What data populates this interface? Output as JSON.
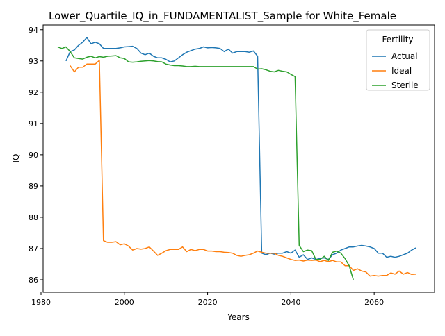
{
  "chart_data": {
    "type": "line",
    "title": "Lower_Quartile_IQ_in_FUNDAMENTALIST_Sample for White_Female",
    "xlabel": "Years",
    "ylabel": "IQ",
    "xlim": [
      1980.5,
      2074.5
    ],
    "ylim": [
      85.6,
      94.15
    ],
    "xticks": [
      1980,
      2000,
      2020,
      2040,
      2060
    ],
    "yticks": [
      86,
      87,
      88,
      89,
      90,
      91,
      92,
      93,
      94
    ],
    "grid": false,
    "legend": {
      "title": "Fertility",
      "placement": "top-right"
    },
    "series": [
      {
        "name": "Actual",
        "color": "#1f77b4",
        "x": [
          1986,
          1987,
          1988,
          1989,
          1990,
          1991,
          1992,
          1993,
          1994,
          1995,
          1996,
          1997,
          1998,
          1999,
          2000,
          2001,
          2002,
          2003,
          2004,
          2005,
          2006,
          2007,
          2008,
          2009,
          2010,
          2011,
          2012,
          2013,
          2014,
          2015,
          2016,
          2017,
          2018,
          2019,
          2020,
          2021,
          2022,
          2023,
          2024,
          2025,
          2026,
          2027,
          2028,
          2029,
          2030,
          2031,
          2032,
          2033,
          2034,
          2035,
          2036,
          2037,
          2038,
          2039,
          2040,
          2041,
          2042,
          2043,
          2044,
          2045,
          2046,
          2047,
          2048,
          2049,
          2050,
          2051,
          2052,
          2053,
          2054,
          2055,
          2056,
          2057,
          2058,
          2059,
          2060,
          2061,
          2062,
          2063,
          2064,
          2065,
          2066,
          2067,
          2068,
          2069,
          2070
        ],
        "y": [
          93.0,
          93.3,
          93.35,
          93.5,
          93.6,
          93.75,
          93.55,
          93.6,
          93.55,
          93.4,
          93.4,
          93.4,
          93.4,
          93.42,
          93.45,
          93.46,
          93.47,
          93.4,
          93.25,
          93.2,
          93.25,
          93.15,
          93.1,
          93.1,
          93.05,
          92.97,
          93.0,
          93.1,
          93.2,
          93.28,
          93.33,
          93.38,
          93.4,
          93.45,
          93.42,
          93.43,
          93.42,
          93.4,
          93.3,
          93.38,
          93.25,
          93.3,
          93.3,
          93.3,
          93.28,
          93.32,
          93.15,
          86.85,
          86.8,
          86.85,
          86.82,
          86.85,
          86.85,
          86.9,
          86.85,
          86.95,
          86.72,
          86.8,
          86.65,
          86.7,
          86.65,
          86.68,
          86.7,
          86.65,
          86.8,
          86.85,
          86.95,
          87.0,
          87.05,
          87.05,
          87.08,
          87.1,
          87.08,
          87.05,
          87.0,
          86.85,
          86.85,
          86.72,
          86.75,
          86.72,
          86.75,
          86.8,
          86.85,
          86.95,
          87.02
        ]
      },
      {
        "name": "Ideal",
        "color": "#ff7f0e",
        "x": [
          1987,
          1988,
          1989,
          1990,
          1991,
          1992,
          1993,
          1994,
          1995,
          1996,
          1997,
          1998,
          1999,
          2000,
          2001,
          2002,
          2003,
          2004,
          2005,
          2006,
          2007,
          2008,
          2009,
          2010,
          2011,
          2012,
          2013,
          2014,
          2015,
          2016,
          2017,
          2018,
          2019,
          2020,
          2021,
          2022,
          2023,
          2024,
          2025,
          2026,
          2027,
          2028,
          2029,
          2030,
          2031,
          2032,
          2033,
          2034,
          2035,
          2036,
          2037,
          2038,
          2039,
          2040,
          2041,
          2042,
          2043,
          2044,
          2045,
          2046,
          2047,
          2048,
          2049,
          2050,
          2051,
          2052,
          2053,
          2054,
          2055,
          2056,
          2057,
          2058,
          2059,
          2060,
          2061,
          2062,
          2063,
          2064,
          2065,
          2066,
          2067,
          2068,
          2069,
          2070
        ],
        "y": [
          92.85,
          92.65,
          92.8,
          92.8,
          92.9,
          92.9,
          92.9,
          93.02,
          87.25,
          87.2,
          87.2,
          87.22,
          87.12,
          87.15,
          87.08,
          86.95,
          87.0,
          86.98,
          87.0,
          87.05,
          86.92,
          86.78,
          86.85,
          86.93,
          86.97,
          86.97,
          86.97,
          87.05,
          86.9,
          86.97,
          86.93,
          86.97,
          86.97,
          86.92,
          86.92,
          86.9,
          86.9,
          86.88,
          86.87,
          86.85,
          86.78,
          86.75,
          86.78,
          86.8,
          86.85,
          86.92,
          86.88,
          86.85,
          86.85,
          86.85,
          86.78,
          86.75,
          86.7,
          86.65,
          86.62,
          86.63,
          86.6,
          86.63,
          86.62,
          86.63,
          86.58,
          86.62,
          86.58,
          86.62,
          86.57,
          86.57,
          86.45,
          86.45,
          86.3,
          86.35,
          86.28,
          86.25,
          86.12,
          86.14,
          86.12,
          86.14,
          86.14,
          86.22,
          86.18,
          86.28,
          86.18,
          86.23,
          86.17,
          86.18
        ]
      },
      {
        "name": "Sterile",
        "color": "#2ca02c",
        "x": [
          1984,
          1985,
          1986,
          1987,
          1988,
          1989,
          1990,
          1991,
          1992,
          1993,
          1994,
          1995,
          1996,
          1997,
          1998,
          1999,
          2000,
          2001,
          2002,
          2003,
          2004,
          2005,
          2006,
          2007,
          2008,
          2009,
          2010,
          2011,
          2012,
          2013,
          2014,
          2015,
          2016,
          2017,
          2018,
          2019,
          2020,
          2021,
          2022,
          2023,
          2024,
          2025,
          2026,
          2027,
          2028,
          2029,
          2030,
          2031,
          2032,
          2033,
          2034,
          2035,
          2036,
          2037,
          2038,
          2039,
          2040,
          2041,
          2042,
          2043,
          2044,
          2045,
          2046,
          2047,
          2048,
          2049,
          2050,
          2051,
          2052,
          2053,
          2054,
          2055
        ],
        "y": [
          93.45,
          93.4,
          93.45,
          93.3,
          93.1,
          93.08,
          93.06,
          93.12,
          93.15,
          93.1,
          93.14,
          93.12,
          93.15,
          93.16,
          93.17,
          93.1,
          93.08,
          92.97,
          92.96,
          92.97,
          92.99,
          93.0,
          93.01,
          93.0,
          92.98,
          92.97,
          92.9,
          92.87,
          92.85,
          92.85,
          92.84,
          92.82,
          92.82,
          92.83,
          92.82,
          92.82,
          92.82,
          92.82,
          92.82,
          92.82,
          92.82,
          92.82,
          92.82,
          92.82,
          92.82,
          92.82,
          92.82,
          92.82,
          92.74,
          92.75,
          92.72,
          92.67,
          92.65,
          92.7,
          92.67,
          92.65,
          92.57,
          92.5,
          87.1,
          86.9,
          86.95,
          86.93,
          86.65,
          86.65,
          86.75,
          86.62,
          86.88,
          86.92,
          86.85,
          86.68,
          86.45,
          86.0
        ]
      }
    ]
  }
}
